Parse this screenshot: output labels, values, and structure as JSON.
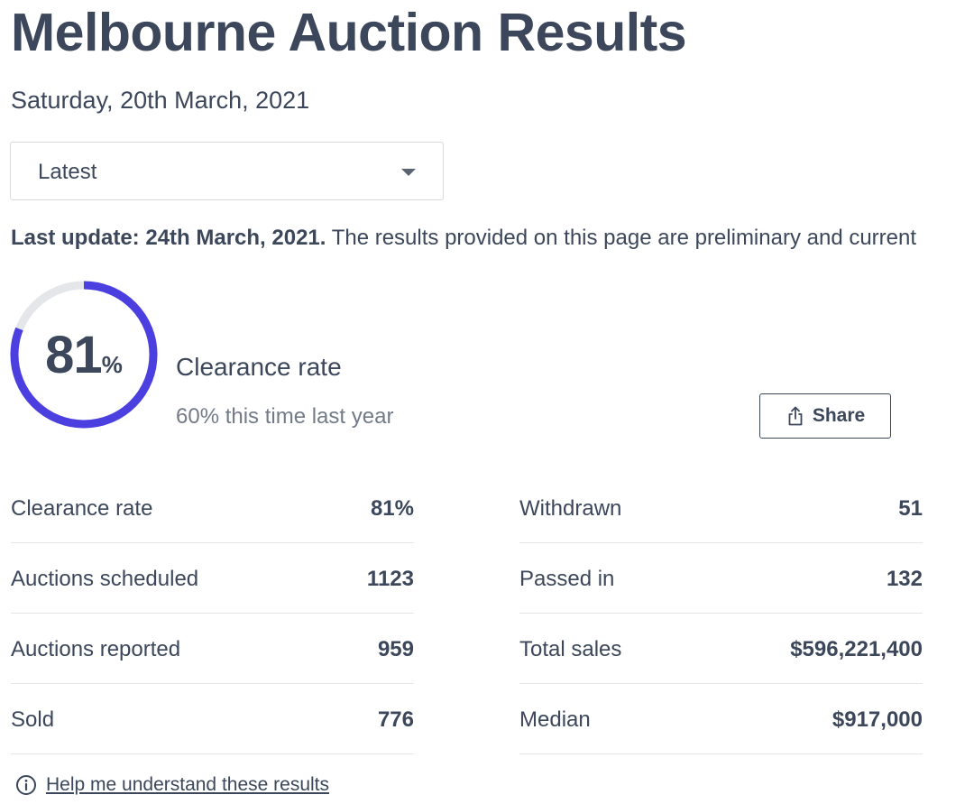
{
  "header": {
    "title": "Melbourne Auction Results",
    "date": "Saturday, 20th March, 2021"
  },
  "period_select": {
    "value": "Latest",
    "icon": "chevron-down-icon"
  },
  "update": {
    "bold": "Last update: 24th March, 2021.",
    "text": " The results provided on this page are preliminary and current"
  },
  "gauge": {
    "value": "81",
    "unit": "%",
    "fraction": 0.81,
    "progress_color": "#4b3fe0",
    "track_color": "#e4e6ea"
  },
  "clearance": {
    "label": "Clearance rate",
    "compare": "60% this time last year"
  },
  "share": {
    "label": "Share",
    "icon": "share-icon"
  },
  "stats": {
    "left": [
      {
        "label": "Clearance rate",
        "value": "81%"
      },
      {
        "label": "Auctions scheduled",
        "value": "1123"
      },
      {
        "label": "Auctions reported",
        "value": "959"
      },
      {
        "label": "Sold",
        "value": "776"
      }
    ],
    "right": [
      {
        "label": "Withdrawn",
        "value": "51"
      },
      {
        "label": "Passed in",
        "value": "132"
      },
      {
        "label": "Total sales",
        "value": "$596,221,400"
      },
      {
        "label": "Median",
        "value": "$917,000"
      }
    ]
  },
  "help": {
    "label": "Help me understand these results",
    "icon": "info-icon"
  }
}
